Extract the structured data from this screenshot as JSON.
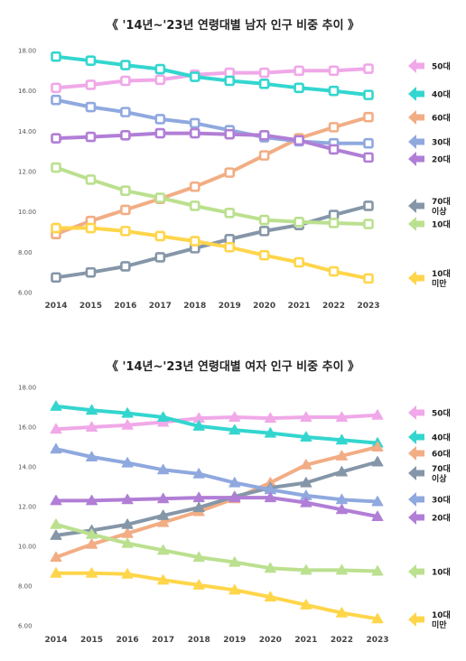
{
  "chart_data": [
    {
      "type": "line",
      "title": "《 '14년~'23년 연령대별 남자 인구 비중 추이 》",
      "xlabel": "",
      "ylabel": "",
      "x": [
        "2014",
        "2015",
        "2016",
        "2017",
        "2018",
        "2019",
        "2020",
        "2021",
        "2022",
        "2023"
      ],
      "ylim": [
        6,
        18
      ],
      "yticks": [
        "6.00",
        "8.00",
        "10.00",
        "12.00",
        "14.00",
        "16.00",
        "18.00"
      ],
      "marker": "square",
      "grid": false,
      "legend_position": "right",
      "series": [
        {
          "name": "50대",
          "color": "#f0a8e8",
          "values": [
            16.15,
            16.3,
            16.5,
            16.55,
            16.8,
            16.9,
            16.9,
            17.0,
            17.0,
            17.1
          ]
        },
        {
          "name": "40대",
          "color": "#33d6cf",
          "values": [
            17.7,
            17.5,
            17.28,
            17.08,
            16.7,
            16.5,
            16.35,
            16.15,
            16.0,
            15.8
          ]
        },
        {
          "name": "60대",
          "color": "#f2ad84",
          "values": [
            8.9,
            9.55,
            10.1,
            10.65,
            11.25,
            11.95,
            12.8,
            13.65,
            14.2,
            14.7
          ]
        },
        {
          "name": "30대",
          "color": "#8fa9df",
          "values": [
            15.55,
            15.2,
            14.95,
            14.6,
            14.4,
            14.05,
            13.7,
            13.5,
            13.4,
            13.4
          ]
        },
        {
          "name": "20대",
          "color": "#b17ed6",
          "values": [
            13.65,
            13.72,
            13.8,
            13.9,
            13.9,
            13.85,
            13.8,
            13.55,
            13.1,
            12.7
          ]
        },
        {
          "name": "70대\n이상",
          "color": "#8596a8",
          "values": [
            6.75,
            7.0,
            7.3,
            7.75,
            8.2,
            8.65,
            9.05,
            9.35,
            9.85,
            10.3
          ]
        },
        {
          "name": "10대",
          "color": "#bbe08f",
          "values": [
            12.2,
            11.6,
            11.05,
            10.7,
            10.3,
            9.95,
            9.6,
            9.5,
            9.45,
            9.4
          ]
        },
        {
          "name": "10대\n미만",
          "color": "#ffd54a",
          "values": [
            9.2,
            9.2,
            9.05,
            8.8,
            8.55,
            8.25,
            7.85,
            7.5,
            7.05,
            6.7
          ]
        }
      ]
    },
    {
      "type": "line",
      "title": "《 '14년~'23년 연령대별 여자 인구 비중 추이 》",
      "xlabel": "",
      "ylabel": "",
      "x": [
        "2014",
        "2015",
        "2016",
        "2017",
        "2018",
        "2019",
        "2020",
        "2021",
        "2022",
        "2023"
      ],
      "ylim": [
        6,
        18
      ],
      "yticks": [
        "6.00",
        "8.00",
        "10.00",
        "12.00",
        "14.00",
        "16.00",
        "18.00"
      ],
      "marker": "triangle",
      "grid": false,
      "legend_position": "right",
      "series": [
        {
          "name": "50대",
          "color": "#f0a8e8",
          "values": [
            15.9,
            16.0,
            16.1,
            16.25,
            16.45,
            16.5,
            16.45,
            16.5,
            16.5,
            16.6
          ]
        },
        {
          "name": "40대",
          "color": "#33d6cf",
          "values": [
            17.05,
            16.85,
            16.7,
            16.5,
            16.05,
            15.85,
            15.7,
            15.5,
            15.35,
            15.2
          ]
        },
        {
          "name": "60대",
          "color": "#f2ad84",
          "values": [
            9.45,
            10.1,
            10.65,
            11.2,
            11.75,
            12.4,
            13.2,
            14.1,
            14.55,
            15.0
          ]
        },
        {
          "name": "70대\n이상",
          "color": "#8596a8",
          "values": [
            10.55,
            10.8,
            11.1,
            11.55,
            11.95,
            12.5,
            12.95,
            13.2,
            13.75,
            14.25
          ]
        },
        {
          "name": "30대",
          "color": "#8fa9df",
          "values": [
            14.9,
            14.5,
            14.2,
            13.85,
            13.65,
            13.2,
            12.85,
            12.55,
            12.35,
            12.25
          ]
        },
        {
          "name": "20대",
          "color": "#b17ed6",
          "values": [
            12.3,
            12.3,
            12.35,
            12.4,
            12.45,
            12.45,
            12.45,
            12.2,
            11.85,
            11.5
          ]
        },
        {
          "name": "10대",
          "color": "#bbe08f",
          "values": [
            11.1,
            10.6,
            10.15,
            9.8,
            9.45,
            9.2,
            8.9,
            8.8,
            8.8,
            8.75
          ]
        },
        {
          "name": "10대\n미만",
          "color": "#ffd54a",
          "values": [
            8.65,
            8.65,
            8.6,
            8.3,
            8.05,
            7.8,
            7.45,
            7.05,
            6.65,
            6.35
          ]
        }
      ]
    }
  ]
}
